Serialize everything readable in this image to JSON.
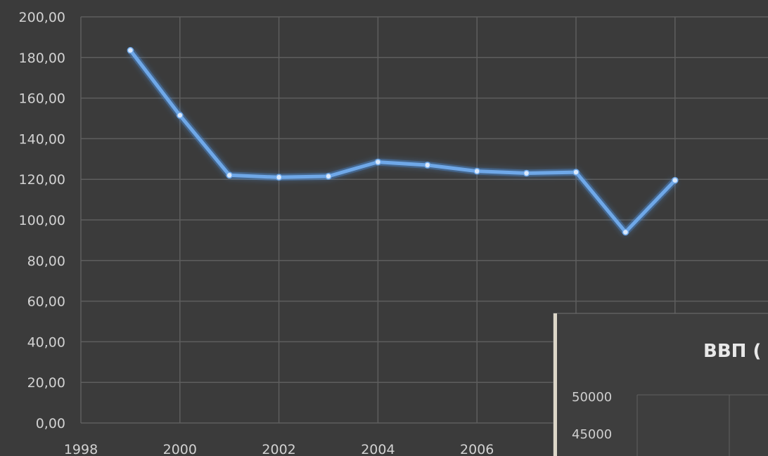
{
  "chart_data": {
    "type": "line",
    "title": "",
    "xlabel": "",
    "ylabel": "",
    "xlim": [
      1998,
      2009
    ],
    "ylim": [
      0,
      200
    ],
    "x_ticks": [
      1998,
      2000,
      2002,
      2004,
      2006
    ],
    "x_tick_labels": [
      "1998",
      "2000",
      "2002",
      "2004",
      "2006"
    ],
    "y_ticks": [
      0,
      20,
      40,
      60,
      80,
      100,
      120,
      140,
      160,
      180,
      200
    ],
    "y_tick_labels": [
      "0,00",
      "20,00",
      "40,00",
      "60,00",
      "80,00",
      "100,00",
      "120,00",
      "140,00",
      "160,00",
      "180,00",
      "200,00"
    ],
    "grid": true,
    "legend": "none",
    "series": [
      {
        "x": [
          1999,
          2000,
          2001,
          2002,
          2003,
          2004,
          2005,
          2006,
          2007,
          2008,
          2009,
          2010
        ],
        "y": [
          183.5,
          151.5,
          122,
          121,
          121.5,
          128.5,
          127,
          124,
          123,
          123.5,
          94,
          119.5
        ],
        "color": "#6fa8e8"
      }
    ]
  },
  "inset": {
    "title": "ВВП (",
    "y_tick_labels": [
      "50000",
      "45000"
    ],
    "background": "#3e3e3e"
  },
  "colors": {
    "background": "#3b3b3b",
    "grid": "#5e5e5e",
    "line": "#6fa8e8",
    "line_glow": "#4e8fdc",
    "tick_text": "#d2d2d2"
  }
}
